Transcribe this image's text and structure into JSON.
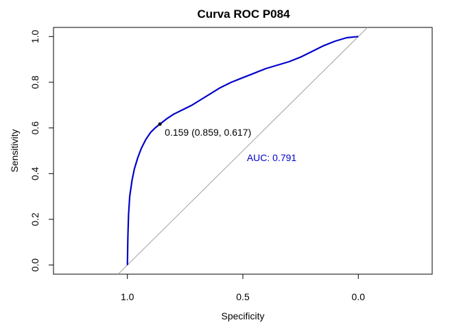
{
  "chart_data": {
    "type": "line",
    "title": "Curva ROC P084",
    "xlabel": "Specificity",
    "ylabel": "Sensitivity",
    "x_reversed": true,
    "xlim": [
      1.32,
      -0.32
    ],
    "ylim": [
      -0.04,
      1.04
    ],
    "x_ticks": [
      1.0,
      0.5,
      0.0
    ],
    "x_tick_labels": [
      "1.0",
      "0.5",
      "0.0"
    ],
    "y_ticks": [
      0.0,
      0.2,
      0.4,
      0.6,
      0.8,
      1.0
    ],
    "y_tick_labels": [
      "0.0",
      "0.2",
      "0.4",
      "0.6",
      "0.8",
      "1.0"
    ],
    "grid": false,
    "series": [
      {
        "color": "#0000CC",
        "points": [
          [
            1.0,
            0.0
          ],
          [
            0.998,
            0.12
          ],
          [
            0.995,
            0.22
          ],
          [
            0.99,
            0.3
          ],
          [
            0.98,
            0.37
          ],
          [
            0.97,
            0.42
          ],
          [
            0.955,
            0.47
          ],
          [
            0.94,
            0.51
          ],
          [
            0.92,
            0.55
          ],
          [
            0.9,
            0.58
          ],
          [
            0.88,
            0.6
          ],
          [
            0.859,
            0.617
          ],
          [
            0.83,
            0.64
          ],
          [
            0.8,
            0.66
          ],
          [
            0.76,
            0.68
          ],
          [
            0.72,
            0.7
          ],
          [
            0.68,
            0.725
          ],
          [
            0.64,
            0.75
          ],
          [
            0.6,
            0.775
          ],
          [
            0.55,
            0.8
          ],
          [
            0.5,
            0.82
          ],
          [
            0.45,
            0.84
          ],
          [
            0.4,
            0.86
          ],
          [
            0.35,
            0.875
          ],
          [
            0.3,
            0.89
          ],
          [
            0.25,
            0.91
          ],
          [
            0.2,
            0.935
          ],
          [
            0.15,
            0.96
          ],
          [
            0.1,
            0.98
          ],
          [
            0.05,
            0.995
          ],
          [
            0.0,
            1.0
          ]
        ]
      }
    ],
    "reference_line": {
      "color": "#A0A0A0",
      "from": [
        1.0,
        0.0
      ],
      "to": [
        0.0,
        1.0
      ]
    },
    "threshold_point": {
      "specificity": 0.859,
      "sensitivity": 0.617,
      "label": "0.159 (0.859, 0.617)",
      "color": "#000000"
    },
    "auc_label": {
      "text": "AUC: 0.791",
      "x": 0.5,
      "y": 0.47,
      "color": "#0000CC"
    }
  }
}
